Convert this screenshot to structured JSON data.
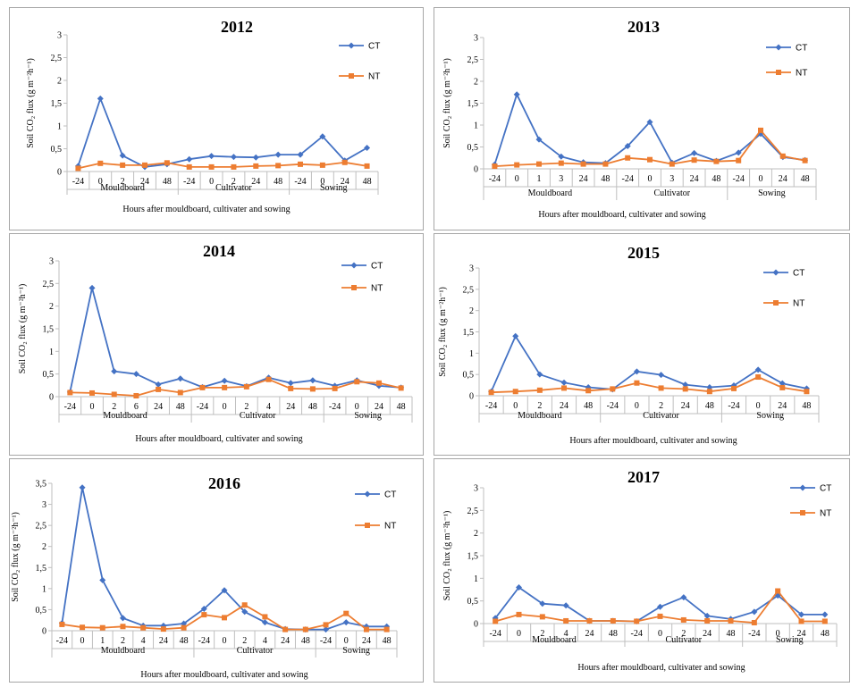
{
  "colors": {
    "ct": "#4472C4",
    "nt": "#ED7D31",
    "axis": "#BFBFBF"
  },
  "chart_data": [
    {
      "type": "line",
      "title": "2012",
      "ylabel": "Soil CO₂ flux (g m⁻²h⁻¹)",
      "xlabel": "Hours after mouldboard, cultivater and sowing",
      "yticks": [
        "0",
        "0,5",
        "1",
        "1,5",
        "2",
        "2,5",
        "3"
      ],
      "ylim": [
        0,
        3
      ],
      "categories": [
        "-24",
        "0",
        "2",
        "24",
        "48",
        "-24",
        "0",
        "2",
        "24",
        "48",
        "-24",
        "0",
        "24",
        "48"
      ],
      "groups": [
        {
          "label": "Mouldboard",
          "count": 5
        },
        {
          "label": "Cultivator",
          "count": 5
        },
        {
          "label": "Sowing",
          "count": 4
        }
      ],
      "legend": "right",
      "series": [
        {
          "name": "CT",
          "marker": "diamond",
          "values": [
            0.12,
            1.6,
            0.35,
            0.1,
            0.16,
            0.27,
            0.34,
            0.32,
            0.31,
            0.37,
            0.37,
            0.77,
            0.24,
            0.52
          ]
        },
        {
          "name": "NT",
          "marker": "square",
          "values": [
            0.07,
            0.18,
            0.14,
            0.14,
            0.19,
            0.1,
            0.1,
            0.1,
            0.12,
            0.13,
            0.16,
            0.14,
            0.2,
            0.12
          ]
        }
      ]
    },
    {
      "type": "line",
      "title": "2013",
      "ylabel": "Soil CO₂ flux (g m⁻²h⁻¹)",
      "xlabel": "Hours after mouldboard, cultivater and sowing",
      "yticks": [
        "0",
        "0,5",
        "1",
        "1,5",
        "2",
        "2,5",
        "3"
      ],
      "ylim": [
        0,
        3
      ],
      "categories": [
        "-24",
        "0",
        "1",
        "3",
        "24",
        "48",
        "-24",
        "0",
        "3",
        "24",
        "48",
        "-24",
        "0",
        "24",
        "48"
      ],
      "groups": [
        {
          "label": "Mouldboard",
          "count": 6
        },
        {
          "label": "Cultivator",
          "count": 5
        },
        {
          "label": "Sowing",
          "count": 4
        }
      ],
      "legend": "right",
      "series": [
        {
          "name": "CT",
          "marker": "diamond",
          "values": [
            0.1,
            1.7,
            0.67,
            0.28,
            0.15,
            0.13,
            0.52,
            1.07,
            0.14,
            0.36,
            0.18,
            0.37,
            0.8,
            0.27,
            0.2
          ]
        },
        {
          "name": "NT",
          "marker": "square",
          "values": [
            0.06,
            0.09,
            0.11,
            0.13,
            0.11,
            0.11,
            0.25,
            0.21,
            0.11,
            0.2,
            0.17,
            0.19,
            0.88,
            0.29,
            0.19
          ]
        }
      ]
    },
    {
      "type": "line",
      "title": "2014",
      "ylabel": "Soil CO₂ flux (g m⁻²h⁻¹)",
      "xlabel": "Hours after mouldboard, cultivater and sowing",
      "yticks": [
        "0",
        "0,5",
        "1",
        "1,5",
        "2",
        "2,5",
        "3"
      ],
      "ylim": [
        0,
        3
      ],
      "categories": [
        "-24",
        "0",
        "2",
        "6",
        "24",
        "48",
        "-24",
        "0",
        "2",
        "4",
        "24",
        "48",
        "-24",
        "0",
        "24",
        "48"
      ],
      "groups": [
        {
          "label": "Mouldboard",
          "count": 6
        },
        {
          "label": "Cultivator",
          "count": 6
        },
        {
          "label": "Sowing",
          "count": 4
        }
      ],
      "legend": "right",
      "series": [
        {
          "name": "CT",
          "marker": "diamond",
          "values": [
            0.1,
            2.4,
            0.56,
            0.5,
            0.27,
            0.4,
            0.21,
            0.35,
            0.23,
            0.42,
            0.3,
            0.36,
            0.24,
            0.36,
            0.24,
            0.2
          ]
        },
        {
          "name": "NT",
          "marker": "square",
          "values": [
            0.09,
            0.08,
            0.05,
            0.02,
            0.16,
            0.09,
            0.2,
            0.2,
            0.22,
            0.38,
            0.18,
            0.17,
            0.18,
            0.33,
            0.3,
            0.19
          ]
        }
      ]
    },
    {
      "type": "line",
      "title": "2015",
      "ylabel": "Soil CO₂ flux (g m⁻²h⁻¹)",
      "xlabel": "Hours after mouldboard, cultivater and sowing",
      "yticks": [
        "0",
        "0,5",
        "1",
        "1,5",
        "2",
        "2,5",
        "3"
      ],
      "ylim": [
        0,
        3
      ],
      "categories": [
        "-24",
        "0",
        "2",
        "24",
        "48",
        "-24",
        "0",
        "2",
        "24",
        "48",
        "-24",
        "0",
        "24",
        "48"
      ],
      "groups": [
        {
          "label": "Mouldboard",
          "count": 5
        },
        {
          "label": "Cultivator",
          "count": 5
        },
        {
          "label": "Sowing",
          "count": 4
        }
      ],
      "legend": "right",
      "series": [
        {
          "name": "CT",
          "marker": "diamond",
          "values": [
            0.1,
            1.4,
            0.5,
            0.31,
            0.2,
            0.15,
            0.57,
            0.49,
            0.26,
            0.2,
            0.24,
            0.61,
            0.29,
            0.17
          ]
        },
        {
          "name": "NT",
          "marker": "square",
          "values": [
            0.08,
            0.1,
            0.13,
            0.18,
            0.12,
            0.16,
            0.3,
            0.18,
            0.16,
            0.1,
            0.17,
            0.44,
            0.19,
            0.1
          ]
        }
      ]
    },
    {
      "type": "line",
      "title": "2016",
      "ylabel": "Soil CO₂ flux (g m⁻²h⁻¹)",
      "xlabel": "Hours after mouldboard, cultivater and sowing",
      "yticks": [
        "0",
        "0,5",
        "1",
        "1,5",
        "2",
        "2,5",
        "3",
        "3,5"
      ],
      "ylim": [
        0,
        3.5
      ],
      "categories": [
        "-24",
        "0",
        "1",
        "2",
        "4",
        "24",
        "48",
        "-24",
        "0",
        "2",
        "4",
        "24",
        "48",
        "-24",
        "0",
        "24",
        "48"
      ],
      "groups": [
        {
          "label": "Mouldboard",
          "count": 7
        },
        {
          "label": "Cultivator",
          "count": 6
        },
        {
          "label": "Sowing",
          "count": 4
        }
      ],
      "legend": "right",
      "series": [
        {
          "name": "CT",
          "marker": "diamond",
          "values": [
            0.18,
            3.4,
            1.2,
            0.3,
            0.12,
            0.12,
            0.17,
            0.52,
            0.96,
            0.45,
            0.2,
            0.04,
            0.03,
            0.03,
            0.2,
            0.1,
            0.1
          ]
        },
        {
          "name": "NT",
          "marker": "square",
          "values": [
            0.15,
            0.08,
            0.07,
            0.1,
            0.07,
            0.04,
            0.07,
            0.38,
            0.31,
            0.61,
            0.33,
            0.03,
            0.03,
            0.14,
            0.41,
            0.03,
            0.03
          ]
        }
      ]
    },
    {
      "type": "line",
      "title": "2017",
      "ylabel": "Soil CO₂ flux (g m⁻²h⁻¹)",
      "xlabel": "Hours after mouldboard, cultivater and sowing",
      "yticks": [
        "0",
        "0,5",
        "1",
        "1,5",
        "2",
        "2,5",
        "3"
      ],
      "ylim": [
        0,
        3
      ],
      "categories": [
        "-24",
        "0",
        "2",
        "4",
        "24",
        "48",
        "-24",
        "0",
        "2",
        "24",
        "48",
        "-24",
        "0",
        "24",
        "48"
      ],
      "groups": [
        {
          "label": "Mouldboard",
          "count": 6
        },
        {
          "label": "Cultivator",
          "count": 5
        },
        {
          "label": "Sowing",
          "count": 4
        }
      ],
      "legend": "right",
      "series": [
        {
          "name": "CT",
          "marker": "diamond",
          "values": [
            0.12,
            0.8,
            0.44,
            0.4,
            0.06,
            0.06,
            0.05,
            0.37,
            0.58,
            0.17,
            0.1,
            0.26,
            0.62,
            0.2,
            0.2
          ]
        },
        {
          "name": "NT",
          "marker": "square",
          "values": [
            0.05,
            0.2,
            0.15,
            0.06,
            0.06,
            0.06,
            0.05,
            0.16,
            0.08,
            0.06,
            0.06,
            0.02,
            0.72,
            0.05,
            0.05
          ]
        }
      ]
    }
  ]
}
